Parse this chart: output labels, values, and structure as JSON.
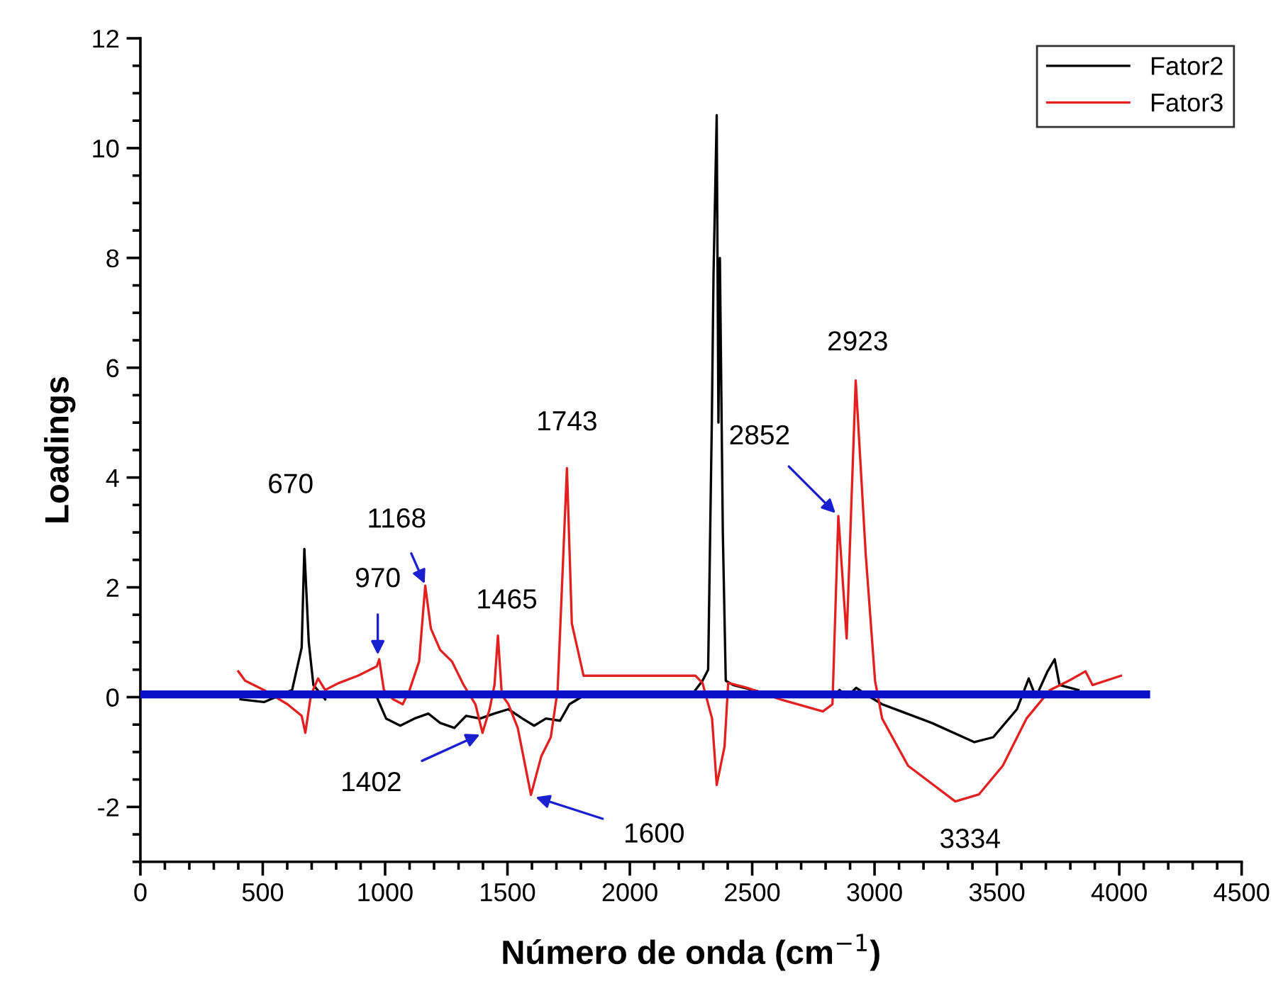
{
  "chart_data": {
    "type": "line",
    "xlabel": "Número de onda (cm$^{−1}$)",
    "ylabel": "Loadings",
    "xlim": [
      0,
      4500
    ],
    "xticks": [
      0,
      500,
      1000,
      1500,
      2000,
      2500,
      3000,
      3500,
      4000,
      4500
    ],
    "ylim": [
      -3,
      12
    ],
    "yticks": [
      -2,
      0,
      2,
      4,
      6,
      8,
      10,
      12
    ],
    "grid": false,
    "legend": "top right",
    "marker": "none",
    "line_style": "solid",
    "series": [
      {
        "name": "Fator2",
        "color": "#000000",
        "x": [
          409,
          505,
          620,
          659,
          670,
          688,
          707,
          755,
          928,
          966,
          1004,
          1062,
          1120,
          1177,
          1225,
          1283,
          1331,
          1388,
          1446,
          1504,
          1561,
          1609,
          1657,
          1715,
          1753,
          1801,
          2250,
          2268,
          2297,
          2320,
          2335,
          2342,
          2355,
          2362,
          2368,
          2380,
          2392,
          2422,
          2615,
          2828,
          2857,
          2886,
          2925,
          2983,
          3031,
          3234,
          3408,
          3485,
          3582,
          3630,
          3659,
          3707,
          3736,
          3756,
          3833
        ],
        "values": [
          -0.04,
          -0.09,
          0.13,
          0.9,
          2.7,
          1.0,
          0.22,
          -0.04,
          null,
          0,
          -0.39,
          -0.52,
          -0.39,
          -0.3,
          -0.47,
          -0.56,
          -0.34,
          -0.39,
          -0.3,
          -0.22,
          -0.39,
          -0.52,
          -0.39,
          -0.43,
          -0.13,
          0,
          0,
          0.13,
          0.3,
          0.5,
          5,
          7.7,
          10.6,
          5.0,
          8.0,
          3,
          0.3,
          0.22,
          0,
          0,
          0.13,
          0,
          0.17,
          0,
          -0.13,
          -0.47,
          -0.82,
          -0.73,
          -0.22,
          0.34,
          0,
          0.47,
          0.69,
          0.22,
          0.13
        ]
      },
      {
        "name": "Fator3",
        "color": "#e32020",
        "x": [
          400,
          428,
          505,
          601,
          659,
          674,
          697,
          726,
          755,
          812,
          889,
          966,
          976,
          995,
          1033,
          1072,
          1100,
          1139,
          1164,
          1187,
          1225,
          1273,
          1321,
          1369,
          1398,
          1427,
          1447,
          1461,
          1477,
          1504,
          1542,
          1596,
          1638,
          1677,
          1705,
          1743,
          1763,
          1811,
          2268,
          2297,
          2336,
          2355,
          2387,
          2402,
          2480,
          2615,
          2789,
          2828,
          2852,
          2886,
          2923,
          2964,
          3002,
          3031,
          3137,
          3330,
          3427,
          3524,
          3621,
          3717,
          3794,
          3862,
          3891,
          4007
        ],
        "values": [
          0.47,
          0.3,
          0.13,
          -0.13,
          -0.34,
          -0.65,
          0.04,
          0.34,
          0.13,
          0.26,
          0.39,
          0.56,
          0.69,
          0.13,
          -0.04,
          -0.13,
          0.13,
          0.65,
          2.03,
          1.25,
          0.86,
          0.65,
          0.22,
          -0.13,
          -0.65,
          -0.22,
          0.22,
          1.12,
          0.04,
          -0.13,
          -0.56,
          -1.78,
          -1.08,
          -0.73,
          0.13,
          4.17,
          1.34,
          0.39,
          0.39,
          0.26,
          -0.39,
          -1.6,
          -0.9,
          0.26,
          0.17,
          -0.04,
          -0.26,
          -0.13,
          3.3,
          1.07,
          5.77,
          2.6,
          0.3,
          -0.39,
          -1.25,
          -1.9,
          -1.77,
          -1.25,
          -0.39,
          0.13,
          0.3,
          0.47,
          0.22,
          0.39
        ]
      },
      {
        "color": "#0a10c8",
        "x": [
          0,
          4110
        ],
        "values": [
          0.05,
          0.05
        ]
      }
    ],
    "annotations": [
      {
        "text": "670",
        "x": 670,
        "y": 2.7
      },
      {
        "text": "970",
        "x": 970,
        "y": 0.7
      },
      {
        "text": "1168",
        "x": 1168,
        "y": 2.0
      },
      {
        "text": "1465",
        "x": 1465,
        "y": 1.1
      },
      {
        "text": "1743",
        "x": 1743,
        "y": 4.2
      },
      {
        "text": "1402",
        "x": 1402,
        "y": -0.65
      },
      {
        "text": "1600",
        "x": 1600,
        "y": -1.8
      },
      {
        "text": "2852",
        "x": 2852,
        "y": 3.3
      },
      {
        "text": "2923",
        "x": 2923,
        "y": 5.8
      },
      {
        "text": "3334",
        "x": 3334,
        "y": -1.9
      }
    ]
  }
}
